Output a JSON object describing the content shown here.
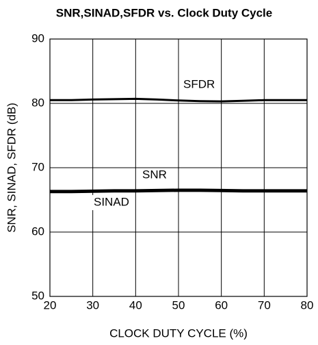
{
  "chart_data": {
    "type": "line",
    "title": "SNR,SINAD,SFDR vs. Clock Duty Cycle",
    "xlabel": "CLOCK DUTY CYCLE (%)",
    "ylabel": "SNR, SINAD, SFDR (dB)",
    "x": [
      20,
      25,
      30,
      35,
      40,
      45,
      50,
      55,
      60,
      65,
      70,
      75,
      80
    ],
    "series": [
      {
        "name": "SFDR",
        "color": "#000000",
        "values": [
          80.5,
          80.5,
          80.6,
          80.65,
          80.7,
          80.6,
          80.45,
          80.35,
          80.3,
          80.4,
          80.5,
          80.5,
          80.5
        ]
      },
      {
        "name": "SNR",
        "color": "#000000",
        "values": [
          66.4,
          66.4,
          66.45,
          66.5,
          66.5,
          66.55,
          66.6,
          66.6,
          66.55,
          66.5,
          66.5,
          66.5,
          66.5
        ]
      },
      {
        "name": "SINAD",
        "color": "#000000",
        "values": [
          66.2,
          66.2,
          66.25,
          66.3,
          66.3,
          66.35,
          66.4,
          66.4,
          66.35,
          66.3,
          66.3,
          66.3,
          66.3
        ]
      }
    ],
    "xlim": [
      20,
      80
    ],
    "xticks": [
      20,
      30,
      40,
      50,
      60,
      70,
      80
    ],
    "ylim": [
      50,
      90
    ],
    "yticks": [
      50,
      60,
      70,
      80,
      90
    ],
    "grid": true
  }
}
